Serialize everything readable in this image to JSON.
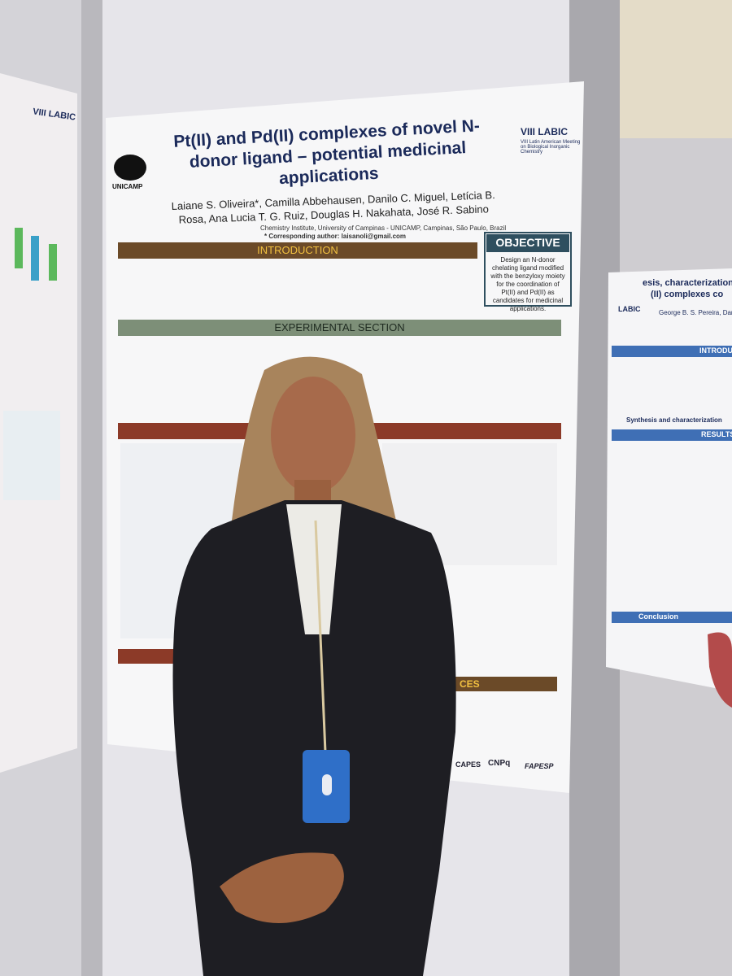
{
  "poster": {
    "logo_left": "UNICAMP",
    "logo_right": "VIII LABIC",
    "logo_right_sub": "VIII Latin American Meeting on Biological Inorganic Chemistry",
    "title": "Pt(II) and Pd(II) complexes of novel N-donor ligand – potential medicinal applications",
    "authors": "Laiane S. Oliveira*, Camilla Abbehausen, Danilo C. Miguel, Letícia B. Rosa, Ana Lucia T. G. Ruiz, Douglas H. Nakahata, José R. Sabino",
    "affiliation": "Chemistry Institute, University of Campinas - UNICAMP, Campinas, São Paulo, Brazil",
    "corresponding": "* Corresponding author: laisanoli@gmail.com",
    "sections": {
      "introduction": "INTRODUCTION",
      "experimental": "EXPERIMENTAL SECTION",
      "objective": "OBJECTIVE",
      "references": "CES"
    },
    "objective_text": "Design an N-donor chelating ligand modified with the benzyloxy moiety for the coordination of Pt(II) and Pd(II) as candidates for medicinal applications.",
    "sponsors": [
      "CAPES",
      "CNPq",
      "FAPESP"
    ]
  },
  "right_poster": {
    "title": "esis, characterization and b",
    "title_2": "(II) complexes co",
    "authors": "George B. S. Pereira, Dario B.",
    "logo": "LABIC",
    "sections": [
      "INTRODU",
      "Synthesis and characterization",
      "RESULTS",
      "Conclusion"
    ]
  },
  "left_poster": {
    "logo": "VIII LABIC"
  }
}
